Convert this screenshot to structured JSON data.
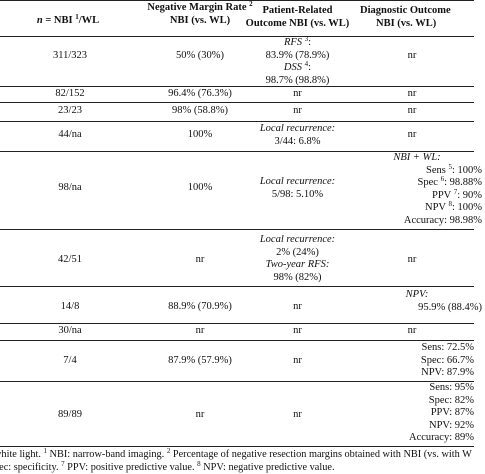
{
  "headers": {
    "col_n_prefix": "n",
    "col_n_eq": " = NBI ",
    "col_n_sup": "1",
    "col_n_suffix": "/WL",
    "col_margin_line1": "Negative Margin Rate ",
    "col_margin_sup": "2",
    "col_margin_line2": "NBI (vs. WL)",
    "col_patient_line1": "Patient-Related",
    "col_patient_line2": "Outcome NBI (vs. WL)",
    "col_diag_line1": "Diagnostic Outcome",
    "col_diag_line2": "NBI (vs. WL)"
  },
  "rows": [
    {
      "n": "311/323",
      "margin": "50% (30%)",
      "patient": {
        "l1_label": "RFS",
        "l1_sup": "3",
        "l1_tail": ":",
        "l2": "83.9% (78.9%)",
        "l3_label": "DSS",
        "l3_sup": "4",
        "l3_tail": ":",
        "l4": "98.7% (98.8%)"
      },
      "diag": "nr"
    },
    {
      "n": "82/152",
      "margin": "96.4% (76.3%)",
      "patient": "nr",
      "diag": "nr"
    },
    {
      "n": "23/23",
      "margin": "98% (58.8%)",
      "patient": "nr",
      "diag": "nr"
    },
    {
      "n": "44/na",
      "margin": "100%",
      "patient": {
        "l1": "Local recurrence:",
        "l2": "3/44: 6.8%"
      },
      "diag": "nr"
    },
    {
      "n": "98/na",
      "margin": "100%",
      "patient": {
        "l1": "Local recurrence:",
        "l2": "5/98: 5.10%"
      },
      "diag": {
        "title": "NBI + WL:",
        "sens_a": "Sens ",
        "sens_sup": "5",
        "sens_b": ": 100%",
        "spec_a": "Spec ",
        "spec_sup": "6",
        "spec_b": ": 98.88%",
        "ppv": "PPV ",
        "ppv_sup": "7",
        "ppv_b": ": 90%",
        "npv": "NPV ",
        "npv_sup": "8",
        "npv_b": ": 100%",
        "acc": "Accuracy: 98.98%"
      }
    },
    {
      "n": "42/51",
      "margin": "nr",
      "patient": {
        "l1": "Local recurrence:",
        "l2": "2% (24%)",
        "l3": "Two-year RFS:",
        "l4": "98% (82%)"
      },
      "diag": "nr"
    },
    {
      "n": "14/8",
      "margin": "88.9% (70.9%)",
      "patient": "nr",
      "diag": {
        "l1": "NPV:",
        "l2": "95.9% (88.4%)"
      }
    },
    {
      "n": "30/na",
      "margin": "nr",
      "patient": "nr",
      "diag": "nr"
    },
    {
      "n": "7/4",
      "margin": "87.9% (57.9%)",
      "patient": "nr",
      "diag": {
        "l1": "Sens: 72.5%",
        "l2": "Spec: 66.7%",
        "l3": "NPV: 87.9%"
      }
    },
    {
      "n": "89/89",
      "margin": "nr",
      "patient": "nr",
      "diag": {
        "l1": "Sens: 95%",
        "l2": "Spec: 82%",
        "l3": "PPV: 87%",
        "l4": "NPV: 92%",
        "l5": "Accuracy: 89%"
      }
    }
  ],
  "footnote": {
    "line1_a": "white light. ",
    "line1_s1": "1",
    "line1_b": " NBI: narrow-band imaging. ",
    "line1_s2": "2",
    "line1_c": " Percentage of negative resection margins obtained with NBI (vs. with W",
    "line2_a": "pec: specificity. ",
    "line2_s1": "7",
    "line2_b": " PPV: positive predictive value. ",
    "line2_s2": "8",
    "line2_c": " NPV: negative predictive value."
  }
}
